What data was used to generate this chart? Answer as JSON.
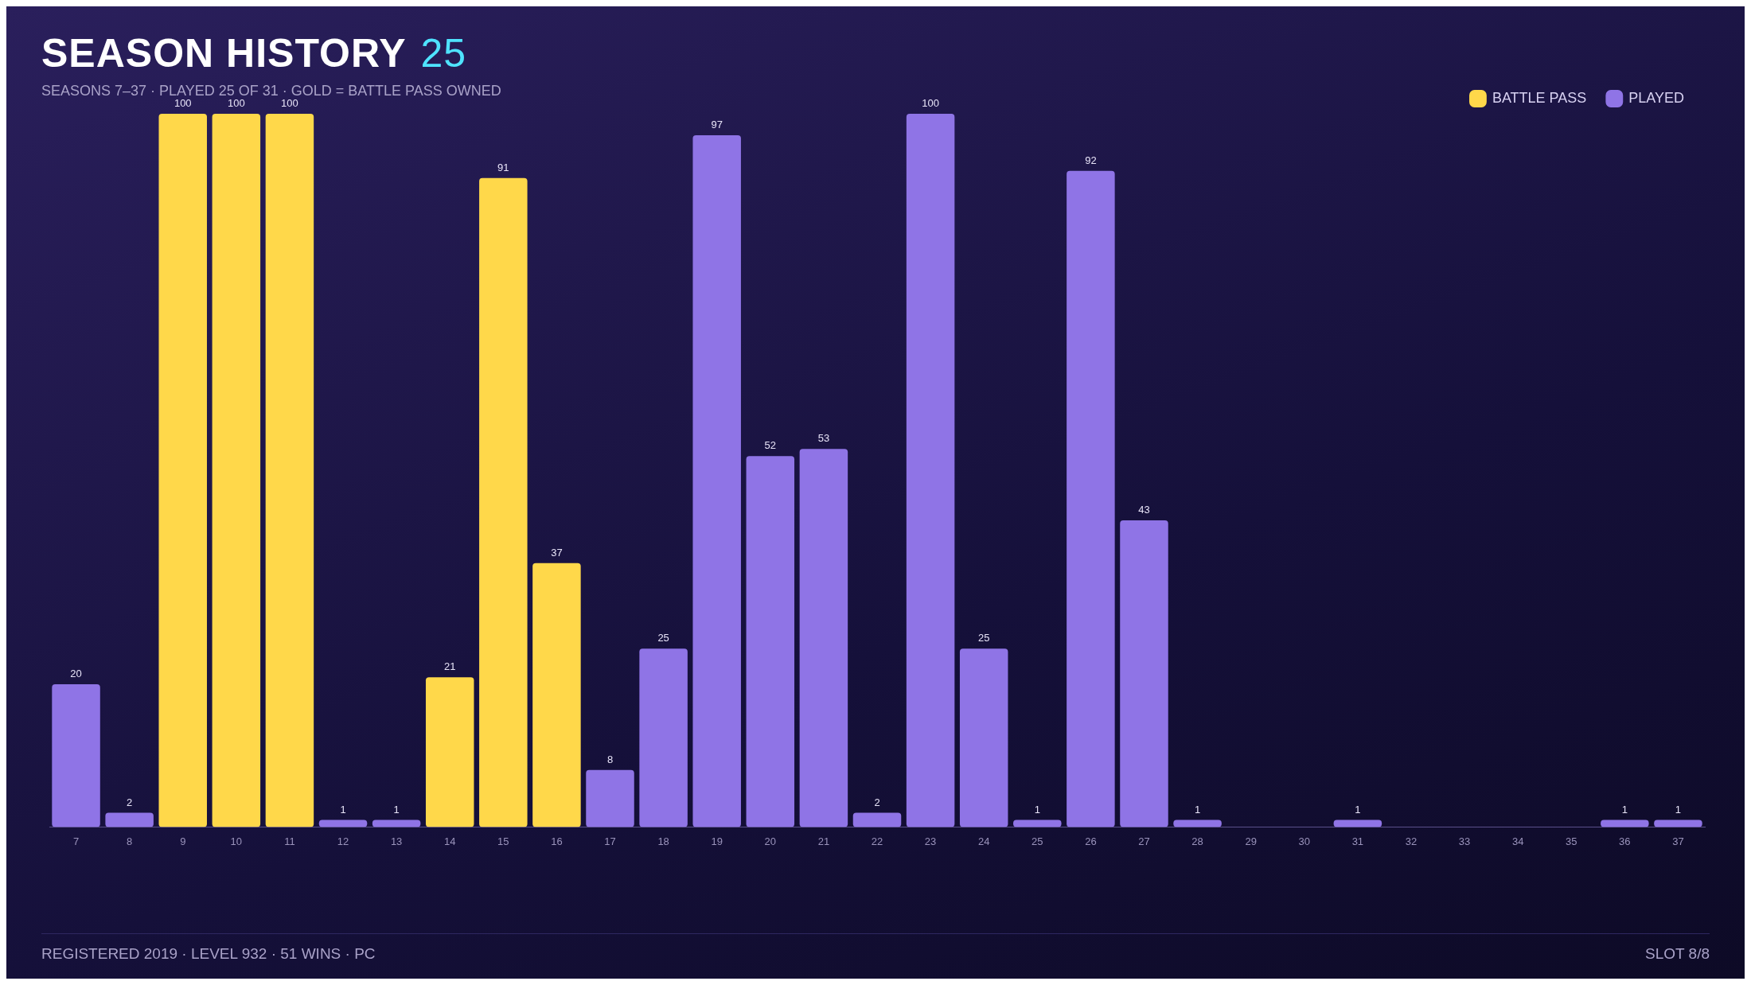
{
  "chart_data": {
    "type": "bar",
    "title": "SEASON HISTORY 25",
    "subtitle": "SEASONS 7–37 · PLAYED 25 OF 31 · GOLD = BATTLE PASS OWNED",
    "categories": [
      "7",
      "8",
      "9",
      "10",
      "11",
      "12",
      "13",
      "14",
      "15",
      "16",
      "17",
      "18",
      "19",
      "20",
      "21",
      "22",
      "23",
      "24",
      "25",
      "26",
      "27",
      "28",
      "29",
      "30",
      "31",
      "32",
      "33",
      "34",
      "35",
      "36",
      "37"
    ],
    "stacked": true,
    "series": [
      {
        "name": "BATTLE PASS",
        "color": "#ffd84a",
        "values": [
          null,
          null,
          100,
          100,
          100,
          null,
          null,
          21,
          91,
          37,
          null,
          null,
          null,
          null,
          null,
          null,
          null,
          null,
          null,
          null,
          null,
          null,
          null,
          null,
          null,
          null,
          null,
          null,
          null,
          null,
          null
        ]
      },
      {
        "name": "PLAYED",
        "color": "#8f74e6",
        "values": [
          20,
          2,
          null,
          null,
          null,
          1,
          1,
          null,
          null,
          null,
          8,
          25,
          97,
          52,
          53,
          2,
          100,
          25,
          1,
          92,
          43,
          1,
          null,
          null,
          1,
          null,
          null,
          null,
          null,
          1,
          1
        ]
      }
    ],
    "data_labels": true,
    "legend": "top right",
    "grid": false,
    "tick_labels": "x",
    "annotations": [
      "REGISTERED 2019 · LEVEL 932 · 51 WINS · PC",
      "SLOT 8/8"
    ]
  }
}
